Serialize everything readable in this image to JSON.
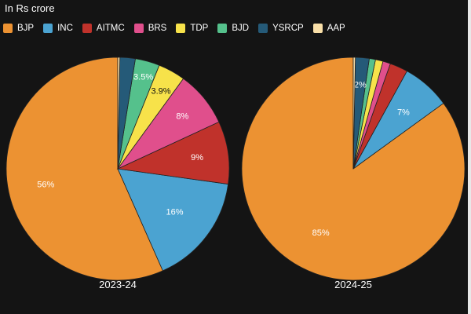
{
  "subtitle": "In Rs crore",
  "chart_data": {
    "type": "pie",
    "legend_position": "top-left",
    "parties": [
      {
        "name": "BJP",
        "color": "#ec9232"
      },
      {
        "name": "INC",
        "color": "#4ba3d1"
      },
      {
        "name": "AITMC",
        "color": "#c0322b"
      },
      {
        "name": "BRS",
        "color": "#e04f8c"
      },
      {
        "name": "TDP",
        "color": "#f7e24a"
      },
      {
        "name": "BJD",
        "color": "#55c18c"
      },
      {
        "name": "YSRCP",
        "color": "#255a78"
      },
      {
        "name": "AAP",
        "color": "#f9dfa8"
      }
    ],
    "pies": [
      {
        "title": "2023-24",
        "values": [
          56,
          16,
          9,
          8,
          3.9,
          3.5,
          2.2,
          0.3
        ],
        "labels": [
          "56%",
          "16%",
          "9%",
          "8%",
          "3.9%",
          "3.5%",
          "",
          ""
        ]
      },
      {
        "title": "2024-25",
        "values": [
          85,
          7,
          2.6,
          1.1,
          1.1,
          0.9,
          2,
          0.3
        ],
        "labels": [
          "85%",
          "7%",
          "",
          "",
          "",
          "",
          "2%",
          ""
        ]
      }
    ]
  }
}
